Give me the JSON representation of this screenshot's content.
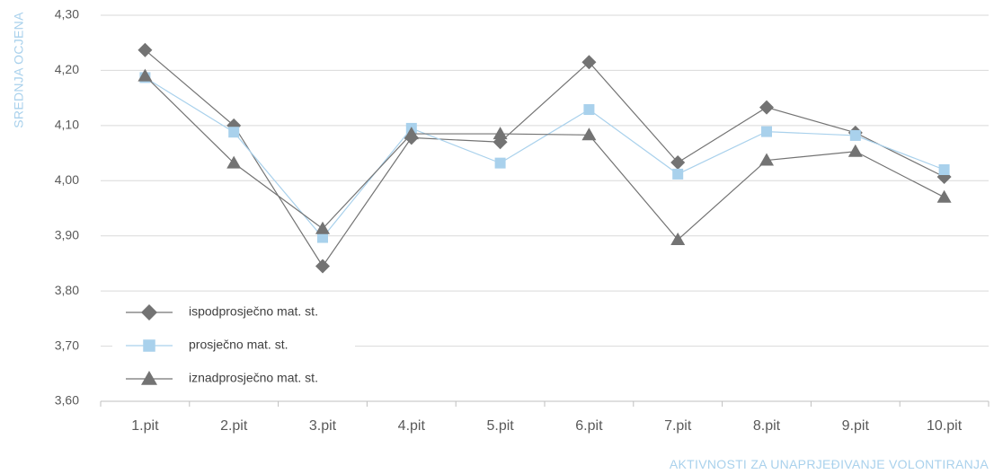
{
  "chart_data": {
    "type": "line",
    "categories": [
      "1.pit",
      "2.pit",
      "3.pit",
      "4.pit",
      "5.pit",
      "6.pit",
      "7.pit",
      "8.pit",
      "9.pit",
      "10.pit"
    ],
    "series": [
      {
        "name": "ispodprosječno mat. st.",
        "marker": "diamond",
        "color": "#737373",
        "values": [
          4.237,
          4.1,
          3.845,
          4.078,
          4.07,
          4.215,
          4.033,
          4.133,
          4.087,
          4.007
        ]
      },
      {
        "name": "prosječno mat. st.",
        "marker": "square",
        "color": "#a9d1ec",
        "values": [
          4.187,
          4.088,
          3.897,
          4.095,
          4.032,
          4.129,
          4.012,
          4.089,
          4.082,
          4.02
        ]
      },
      {
        "name": "iznadprosječno mat. st.",
        "marker": "triangle",
        "color": "#737373",
        "values": [
          4.19,
          4.032,
          3.913,
          4.085,
          4.085,
          4.083,
          3.893,
          4.037,
          4.053,
          3.97
        ]
      }
    ],
    "yticks": [
      "4,30",
      "4,20",
      "4,10",
      "4,00",
      "3,90",
      "3,80",
      "3,70",
      "3,60"
    ],
    "ylim": [
      3.6,
      4.3
    ],
    "ylabel": "SREDNJA OCJENA",
    "xlabel": "AKTIVNOSTI ZA UNAPRJEĐIVANJE VOLONTIRANJA",
    "grid": true,
    "legend_position": "bottom-left"
  }
}
